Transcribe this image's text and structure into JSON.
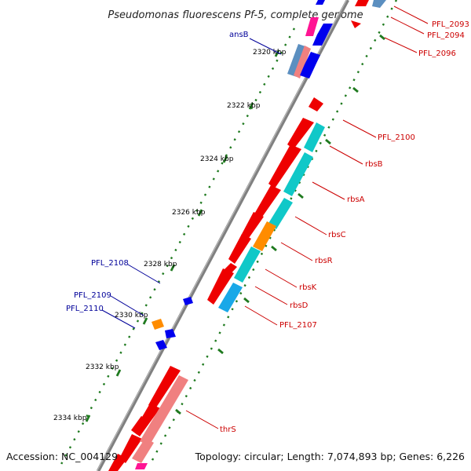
{
  "title": "Pseudomonas fluorescens Pf-5, complete genome",
  "footer": {
    "accession": "Accession: NC_004129",
    "summary": "Topology: circular; Length: 7,074,893 bp; Genes: 6,226"
  },
  "colors": {
    "backbone": "#808080",
    "tick": "#1f7a1f",
    "red": "#ee0000",
    "salmon": "#f08080",
    "cyan": "#10c8c8",
    "orange": "#ff8c00",
    "blue": "#0000ee",
    "steel": "#5b8fc0",
    "magenta": "#ff1493",
    "pink": "#ff99cc",
    "label_red": "#cc0000",
    "label_blue": "#000099"
  },
  "kbp_labels": [
    "2320 kbp",
    "2322 kbp",
    "2324 kbp",
    "2326 kbp",
    "2328 kbp",
    "2330 kbp",
    "2332 kbp",
    "2334 kbp"
  ],
  "gene_labels_right": [
    "PFL_2093",
    "PFL_2094",
    "PFL_2096",
    "PFL_2100",
    "rbsB",
    "rbsA",
    "rbsC",
    "rbsR",
    "rbsK",
    "rbsD",
    "PFL_2107",
    "thrS"
  ],
  "gene_labels_left": [
    "ansB",
    "PFL_2108",
    "PFL_2109",
    "PFL_2110"
  ]
}
